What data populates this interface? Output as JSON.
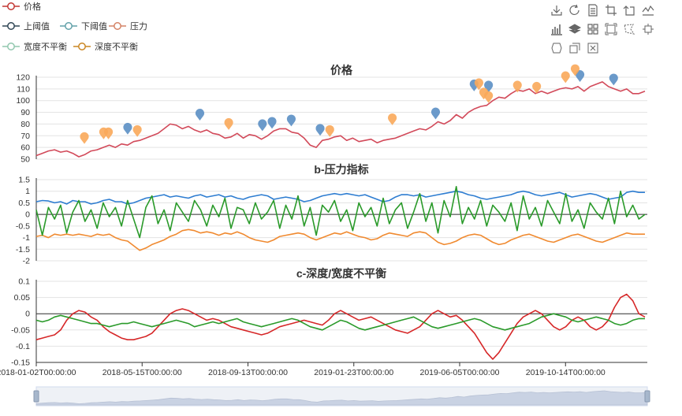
{
  "legend": [
    {
      "name": "价格",
      "color": "#c23531"
    },
    {
      "name": "上阈值",
      "color": "#2f4554"
    },
    {
      "name": "下阈值",
      "color": "#61a0a8"
    },
    {
      "name": "压力",
      "color": "#d48265"
    },
    {
      "name": "宽度不平衡",
      "color": "#91c7ae"
    },
    {
      "name": "深度不平衡",
      "color": "#ca8622"
    }
  ],
  "toolbox": {
    "icons": [
      "save-as-image",
      "restore",
      "data-view",
      "zoom",
      "zoom-back",
      "line-type",
      "bar-type",
      "stack-type",
      "tiled-type",
      "rect-select",
      "polygon-select",
      "keep-select",
      "clear-select"
    ]
  },
  "chart_data": [
    {
      "type": "line",
      "title": "价格",
      "ylim": [
        50,
        120
      ],
      "yticks": [
        50,
        60,
        70,
        80,
        90,
        100,
        110,
        120
      ],
      "series": [
        {
          "name": "价格",
          "color": "#d24a5a",
          "values": [
            53,
            55,
            57,
            58,
            56,
            57,
            55,
            52,
            54,
            57,
            58,
            60,
            62,
            60,
            63,
            62,
            65,
            66,
            68,
            70,
            72,
            76,
            80,
            79,
            76,
            78,
            75,
            73,
            75,
            72,
            71,
            68,
            69,
            72,
            68,
            71,
            70,
            67,
            70,
            74,
            76,
            76,
            73,
            72,
            68,
            62,
            60,
            66,
            67,
            69,
            70,
            66,
            68,
            65,
            66,
            67,
            64,
            66,
            67,
            68,
            70,
            72,
            74,
            76,
            75,
            78,
            82,
            80,
            83,
            88,
            85,
            90,
            93,
            95,
            96,
            100,
            103,
            102,
            106,
            109,
            108,
            110,
            106,
            108,
            106,
            108,
            110,
            111,
            110,
            112,
            108,
            112,
            114,
            116,
            112,
            110,
            108,
            110,
            106,
            106,
            108
          ]
        }
      ],
      "scatter": [
        {
          "name": "上阈值",
          "color": "#5b8fc4",
          "points": [
            [
              19,
              71
            ],
            [
              34,
              83
            ],
            [
              47,
              74
            ],
            [
              49,
              76
            ],
            [
              53,
              78
            ],
            [
              59,
              70
            ],
            [
              83,
              84
            ],
            [
              91,
              108
            ],
            [
              94,
              107
            ],
            [
              113,
              116
            ],
            [
              120,
              113
            ]
          ]
        },
        {
          "name": "下阈值",
          "color": "#f9a85a",
          "points": [
            [
              10,
              63
            ],
            [
              14,
              67
            ],
            [
              15,
              67
            ],
            [
              21,
              69
            ],
            [
              40,
              75
            ],
            [
              61,
              69
            ],
            [
              74,
              79
            ],
            [
              92,
              109
            ],
            [
              93,
              101
            ],
            [
              94,
              98
            ],
            [
              100,
              107
            ],
            [
              104,
              106
            ],
            [
              110,
              115
            ],
            [
              112,
              121
            ]
          ]
        }
      ],
      "x_range": [
        0,
        127
      ]
    },
    {
      "type": "line",
      "title": "b-压力指标",
      "ylim": [
        -2,
        1.5
      ],
      "yticks": [
        -2,
        -1.5,
        -1,
        -0.5,
        0,
        0.5,
        1,
        1.5
      ],
      "series": [
        {
          "name": "上阈值",
          "color": "#2e7dd1",
          "values": [
            0.55,
            0.6,
            0.58,
            0.5,
            0.55,
            0.45,
            0.6,
            0.55,
            0.55,
            0.45,
            0.5,
            0.6,
            0.65,
            0.55,
            0.55,
            0.45,
            0.5,
            0.6,
            0.7,
            0.75,
            0.8,
            0.85,
            0.75,
            0.8,
            0.75,
            0.7,
            0.8,
            0.85,
            0.75,
            0.8,
            0.85,
            0.75,
            0.8,
            0.7,
            0.65,
            0.75,
            0.8,
            0.85,
            0.8,
            0.65,
            0.7,
            0.75,
            0.7,
            0.65,
            0.55,
            0.6,
            0.7,
            0.8,
            0.85,
            0.9,
            0.85,
            0.9,
            0.85,
            0.8,
            0.85,
            0.75,
            0.65,
            0.55,
            0.6,
            0.75,
            0.85,
            0.85,
            0.8,
            0.85,
            0.75,
            0.8,
            0.85,
            0.9,
            0.95,
            1.0,
            0.95,
            0.85,
            0.8,
            0.7,
            0.65,
            0.7,
            0.75,
            0.8,
            0.85,
            0.95,
            1.0,
            0.95,
            0.85,
            0.8,
            0.85,
            0.9,
            0.95,
            0.85,
            0.75,
            0.8,
            0.85,
            0.9,
            0.85,
            0.75,
            0.65,
            0.7,
            0.75,
            0.95,
            1.0,
            0.95,
            0.95
          ]
        },
        {
          "name": "压力",
          "color": "#f08a30",
          "values": [
            -0.95,
            -0.9,
            -1.0,
            -0.85,
            -0.9,
            -0.85,
            -0.9,
            -0.85,
            -0.9,
            -0.95,
            -0.85,
            -0.9,
            -0.85,
            -1.0,
            -1.1,
            -1.15,
            -1.35,
            -1.55,
            -1.45,
            -1.3,
            -1.2,
            -1.1,
            -0.95,
            -0.85,
            -0.7,
            -0.65,
            -0.7,
            -0.8,
            -0.75,
            -0.8,
            -0.9,
            -0.8,
            -0.85,
            -0.75,
            -0.85,
            -1.0,
            -1.1,
            -1.15,
            -1.2,
            -1.1,
            -0.95,
            -0.9,
            -0.85,
            -0.8,
            -0.85,
            -1.0,
            -1.1,
            -1.0,
            -0.9,
            -0.8,
            -0.85,
            -0.75,
            -0.85,
            -0.95,
            -1.0,
            -1.1,
            -1.05,
            -0.9,
            -0.8,
            -0.85,
            -0.9,
            -0.95,
            -0.8,
            -0.75,
            -0.8,
            -1.0,
            -1.2,
            -1.3,
            -1.25,
            -1.15,
            -1.0,
            -0.9,
            -0.85,
            -0.9,
            -1.05,
            -1.2,
            -1.3,
            -1.25,
            -1.1,
            -1.0,
            -0.9,
            -0.85,
            -0.95,
            -1.05,
            -1.15,
            -1.2,
            -1.1,
            -1.0,
            -0.9,
            -0.85,
            -0.95,
            -1.05,
            -1.15,
            -1.2,
            -1.1,
            -1.0,
            -0.9,
            -0.8,
            -0.85,
            -0.85,
            -0.85
          ]
        },
        {
          "name": "宽度不平衡",
          "color": "#2a9a2a",
          "values": [
            0.2,
            -0.9,
            0.3,
            -0.2,
            0.4,
            -0.8,
            0.1,
            0.6,
            -0.3,
            0.2,
            -0.6,
            0.5,
            -0.1,
            0.3,
            -0.5,
            0.6,
            -0.2,
            -1.0,
            0.3,
            0.8,
            -0.4,
            0.2,
            -0.7,
            0.5,
            0.1,
            -0.3,
            0.6,
            0.2,
            -0.5,
            0.4,
            -0.1,
            0.7,
            -0.6,
            0.3,
            0.2,
            -0.4,
            0.5,
            -0.2,
            0.1,
            0.6,
            -0.6,
            0.4,
            -0.2,
            0.8,
            -0.5,
            0.3,
            -0.9,
            0.4,
            0.1,
            0.6,
            -0.3,
            0.2,
            -0.7,
            0.5,
            -0.1,
            0.3,
            -0.5,
            0.7,
            -0.4,
            0.2,
            0.5,
            -0.6,
            0.1,
            0.9,
            -0.3,
            0.5,
            -0.8,
            0.6,
            -0.1,
            1.2,
            -0.4,
            0.3,
            -0.2,
            0.6,
            -0.5,
            0.4,
            0.1,
            -0.3,
            0.5,
            -0.7,
            0.8,
            -0.2,
            0.3,
            -0.5,
            0.6,
            0.1,
            -0.4,
            0.9,
            -0.3,
            0.2,
            -0.6,
            0.5,
            0.1,
            -0.2,
            0.7,
            -0.4,
            1.0,
            -0.1,
            0.4,
            -0.2,
            0.0
          ]
        }
      ],
      "x_range": [
        0,
        127
      ]
    },
    {
      "type": "line",
      "title": "c-深度/宽度不平衡",
      "ylim": [
        -0.15,
        0.1
      ],
      "yticks": [
        -0.15,
        -0.1,
        -0.05,
        0,
        0.05,
        0.1
      ],
      "series": [
        {
          "name": "深度不平衡",
          "color": "#d62728",
          "values": [
            -0.08,
            -0.075,
            -0.07,
            -0.065,
            -0.05,
            -0.02,
            0.0,
            0.01,
            0.005,
            -0.01,
            -0.02,
            -0.04,
            -0.055,
            -0.065,
            -0.075,
            -0.08,
            -0.08,
            -0.075,
            -0.07,
            -0.06,
            -0.04,
            -0.02,
            0.0,
            0.01,
            0.015,
            0.01,
            0.0,
            -0.01,
            -0.02,
            -0.015,
            -0.02,
            -0.03,
            -0.04,
            -0.045,
            -0.05,
            -0.055,
            -0.06,
            -0.065,
            -0.06,
            -0.05,
            -0.04,
            -0.035,
            -0.03,
            -0.025,
            -0.02,
            -0.025,
            -0.03,
            -0.035,
            -0.02,
            0.0,
            0.01,
            0.0,
            -0.01,
            -0.02,
            -0.015,
            -0.01,
            -0.02,
            -0.03,
            -0.04,
            -0.05,
            -0.055,
            -0.06,
            -0.05,
            -0.04,
            -0.02,
            0.0,
            0.01,
            0.0,
            -0.01,
            -0.005,
            -0.02,
            -0.04,
            -0.06,
            -0.09,
            -0.12,
            -0.14,
            -0.12,
            -0.09,
            -0.06,
            -0.03,
            -0.01,
            0.0,
            0.01,
            0.0,
            -0.02,
            -0.04,
            -0.05,
            -0.04,
            -0.02,
            -0.01,
            -0.02,
            -0.04,
            -0.05,
            -0.04,
            -0.02,
            0.02,
            0.05,
            0.06,
            0.04,
            0.0,
            -0.01
          ]
        },
        {
          "name": "宽度不平衡",
          "color": "#2a9a2a",
          "values": [
            -0.02,
            -0.025,
            -0.02,
            -0.01,
            -0.005,
            -0.01,
            -0.015,
            -0.02,
            -0.025,
            -0.03,
            -0.03,
            -0.035,
            -0.04,
            -0.035,
            -0.03,
            -0.03,
            -0.025,
            -0.03,
            -0.035,
            -0.04,
            -0.035,
            -0.03,
            -0.025,
            -0.02,
            -0.025,
            -0.03,
            -0.04,
            -0.035,
            -0.03,
            -0.025,
            -0.03,
            -0.025,
            -0.02,
            -0.015,
            -0.025,
            -0.03,
            -0.035,
            -0.04,
            -0.035,
            -0.03,
            -0.025,
            -0.02,
            -0.015,
            -0.02,
            -0.03,
            -0.04,
            -0.045,
            -0.05,
            -0.04,
            -0.03,
            -0.02,
            -0.025,
            -0.035,
            -0.045,
            -0.05,
            -0.045,
            -0.04,
            -0.035,
            -0.03,
            -0.025,
            -0.02,
            -0.015,
            -0.01,
            -0.02,
            -0.03,
            -0.04,
            -0.045,
            -0.04,
            -0.035,
            -0.03,
            -0.025,
            -0.02,
            -0.015,
            -0.02,
            -0.03,
            -0.04,
            -0.045,
            -0.05,
            -0.045,
            -0.04,
            -0.035,
            -0.03,
            -0.02,
            -0.01,
            -0.005,
            0.0,
            -0.005,
            -0.01,
            -0.02,
            -0.025,
            -0.02,
            -0.015,
            -0.01,
            -0.015,
            -0.02,
            -0.03,
            -0.035,
            -0.03,
            -0.02,
            -0.015,
            -0.015
          ]
        }
      ],
      "x_range": [
        0,
        127
      ]
    }
  ],
  "x_axis": {
    "tick_labels": [
      "2018-01-02T00:00:00",
      "2018-05-15T00:00:00",
      "2018-09-13T00:00:00",
      "2019-01-23T00:00:00",
      "2019-06-05T00:00:00",
      "2019-10-14T00:00:00"
    ],
    "tick_positions": [
      0,
      22,
      44,
      66,
      88,
      110
    ],
    "range": [
      0,
      127
    ]
  },
  "datazoom": {
    "range": [
      0,
      100
    ]
  }
}
